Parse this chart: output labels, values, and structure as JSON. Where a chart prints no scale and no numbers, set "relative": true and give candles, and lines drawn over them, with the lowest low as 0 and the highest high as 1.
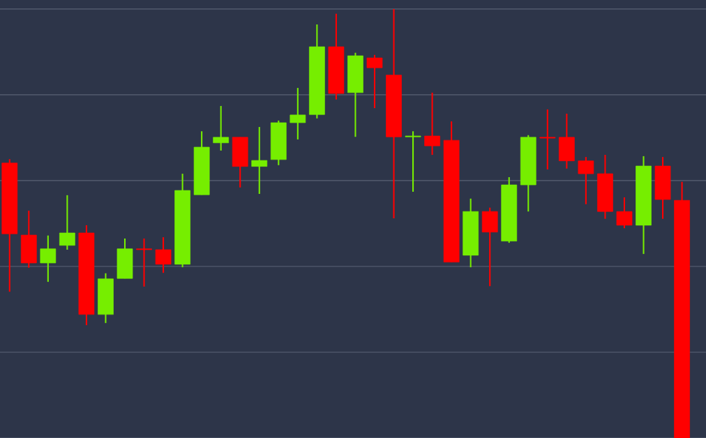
{
  "chart_data": {
    "type": "candlestick",
    "relative": true,
    "grid": "y",
    "categories": [
      null,
      null,
      null,
      null,
      null,
      null,
      null,
      null,
      null,
      null,
      null,
      null,
      null,
      null,
      null,
      null,
      null,
      null,
      null,
      null,
      null,
      null,
      null,
      null,
      null,
      null,
      null,
      null,
      null,
      null,
      null,
      null,
      null,
      null,
      null,
      null
    ],
    "ohlc": [
      [
        0.641,
        0.65,
        0.341,
        0.476
      ],
      [
        0.473,
        0.53,
        0.397,
        0.408
      ],
      [
        0.408,
        0.472,
        0.364,
        0.441
      ],
      [
        0.449,
        0.566,
        0.439,
        0.478
      ],
      [
        0.478,
        0.496,
        0.263,
        0.288
      ],
      [
        0.288,
        0.384,
        0.268,
        0.371
      ],
      [
        0.372,
        0.465,
        0.372,
        0.441
      ],
      [
        0.441,
        0.465,
        0.353,
        0.439
      ],
      [
        0.439,
        0.468,
        0.385,
        0.405
      ],
      [
        0.405,
        0.616,
        0.398,
        0.577
      ],
      [
        0.567,
        0.715,
        0.567,
        0.678
      ],
      [
        0.688,
        0.774,
        0.67,
        0.701
      ],
      [
        0.701,
        0.701,
        0.584,
        0.633
      ],
      [
        0.633,
        0.725,
        0.569,
        0.647
      ],
      [
        0.649,
        0.74,
        0.636,
        0.735
      ],
      [
        0.735,
        0.816,
        0.696,
        0.753
      ],
      [
        0.754,
        0.964,
        0.745,
        0.912
      ],
      [
        0.912,
        0.989,
        0.789,
        0.803
      ],
      [
        0.805,
        0.898,
        0.702,
        0.891
      ],
      [
        0.886,
        0.893,
        0.769,
        0.863
      ],
      [
        0.846,
        1.0,
        0.512,
        0.702
      ],
      [
        0.702,
        0.715,
        0.574,
        0.704
      ],
      [
        0.704,
        0.805,
        0.66,
        0.681
      ],
      [
        0.694,
        0.738,
        0.41,
        0.41
      ],
      [
        0.426,
        0.558,
        0.398,
        0.528
      ],
      [
        0.528,
        0.537,
        0.354,
        0.48
      ],
      [
        0.459,
        0.608,
        0.455,
        0.59
      ],
      [
        0.59,
        0.706,
        0.528,
        0.701
      ],
      [
        0.701,
        0.766,
        0.626,
        0.699
      ],
      [
        0.701,
        0.756,
        0.628,
        0.646
      ],
      [
        0.646,
        0.655,
        0.545,
        0.616
      ],
      [
        0.616,
        0.66,
        0.511,
        0.528
      ],
      [
        0.528,
        0.561,
        0.489,
        0.496
      ],
      [
        0.496,
        0.657,
        0.429,
        0.634
      ],
      [
        0.634,
        0.655,
        0.511,
        0.556
      ],
      [
        0.554,
        0.597,
        0,
        0
      ]
    ],
    "colors": [
      "#ff0000",
      "#ff0000",
      "#76ee00",
      "#76ee00",
      "#ff0000",
      "#76ee00",
      "#76ee00",
      "#ff0000",
      "#ff0000",
      "#76ee00",
      "#76ee00",
      "#76ee00",
      "#ff0000",
      "#76ee00",
      "#76ee00",
      "#76ee00",
      "#76ee00",
      "#ff0000",
      "#76ee00",
      "#ff0000",
      "#ff0000",
      "#76ee00",
      "#ff0000",
      "#ff0000",
      "#76ee00",
      "#ff0000",
      "#76ee00",
      "#76ee00",
      "#ff0000",
      "#ff0000",
      "#ff0000",
      "#ff0000",
      "#ff0000",
      "#76ee00",
      "#ff0000",
      "#ff0000"
    ]
  }
}
